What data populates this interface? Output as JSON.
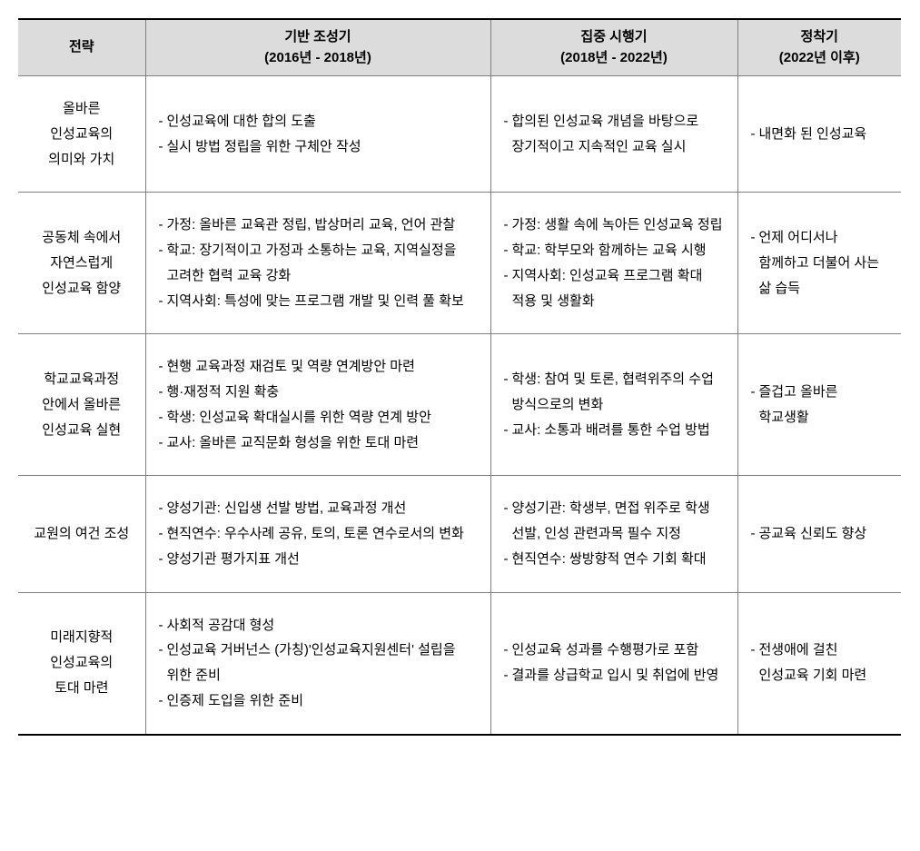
{
  "table": {
    "columns": [
      {
        "label": "전략",
        "sublabel": ""
      },
      {
        "label": "기반 조성기",
        "sublabel": "(2016년 - 2018년)"
      },
      {
        "label": "집중 시행기",
        "sublabel": "(2018년 - 2022년)"
      },
      {
        "label": "정착기",
        "sublabel": "(2022년 이후)"
      }
    ],
    "rows": [
      {
        "strategy": [
          "올바른",
          "인성교육의",
          "의미와 가치"
        ],
        "phase1": [
          "인성교육에 대한 합의 도출",
          "실시 방법 정립을 위한 구체안 작성"
        ],
        "phase2": [
          "합의된 인성교육 개념을 바탕으로 장기적이고 지속적인 교육 실시"
        ],
        "phase3": [
          "내면화 된 인성교육"
        ]
      },
      {
        "strategy": [
          "공동체 속에서",
          "자연스럽게",
          "인성교육 함양"
        ],
        "phase1": [
          "가정: 올바른 교육관 정립, 밥상머리 교육, 언어 관찰",
          "학교: 장기적이고 가정과 소통하는 교육, 지역실정을 고려한 협력 교육 강화",
          "지역사회: 특성에 맞는 프로그램 개발 및 인력 풀 확보"
        ],
        "phase2": [
          "가정: 생활 속에 녹아든 인성교육 정립",
          "학교: 학부모와 함께하는 교육 시행",
          "지역사회: 인성교육 프로그램 확대 적용 및 생활화"
        ],
        "phase3": [
          "언제 어디서나 함께하고 더불어 사는 삶 습득"
        ]
      },
      {
        "strategy": [
          "학교교육과정",
          "안에서 올바른",
          "인성교육 실현"
        ],
        "phase1": [
          "현행 교육과정 재검토 및 역량 연계방안 마련",
          "행·재정적 지원 확충",
          "학생: 인성교육 확대실시를 위한 역량 연계 방안",
          "교사: 올바른 교직문화 형성을 위한 토대 마련"
        ],
        "phase2": [
          "학생: 참여 및 토론, 협력위주의 수업 방식으로의 변화",
          "교사: 소통과 배려를 통한 수업 방법"
        ],
        "phase3": [
          "즐겁고 올바른 학교생활"
        ]
      },
      {
        "strategy": [
          "교원의 여건 조성"
        ],
        "phase1": [
          "양성기관: 신입생 선발 방법, 교육과정 개선",
          "현직연수: 우수사례 공유, 토의, 토론 연수로서의 변화",
          "양성기관 평가지표 개선"
        ],
        "phase2": [
          "양성기관: 학생부, 면접 위주로 학생 선발, 인성 관련과목 필수 지정",
          "현직연수: 쌍방향적 연수 기회 확대"
        ],
        "phase3": [
          "공교육 신뢰도 향상"
        ]
      },
      {
        "strategy": [
          "미래지향적",
          "인성교육의",
          "토대 마련"
        ],
        "phase1": [
          "사회적 공감대 형성",
          "인성교육 거버넌스 (가칭)'인성교육지원센터' 설립을 위한 준비",
          "인증제 도입을 위한 준비"
        ],
        "phase2": [
          "인성교육 성과를 수행평가로 포함",
          "결과를 상급학교 입시 및 취업에 반영"
        ],
        "phase3": [
          "전생애에 걸친 인성교육 기회 마련"
        ]
      }
    ]
  },
  "style": {
    "header_bg": "#dcdcdc",
    "border_outer": "#000000",
    "border_inner": "#808080",
    "text_color": "#000000",
    "font_size_header": 15,
    "font_size_body": 15,
    "dash": "-"
  }
}
